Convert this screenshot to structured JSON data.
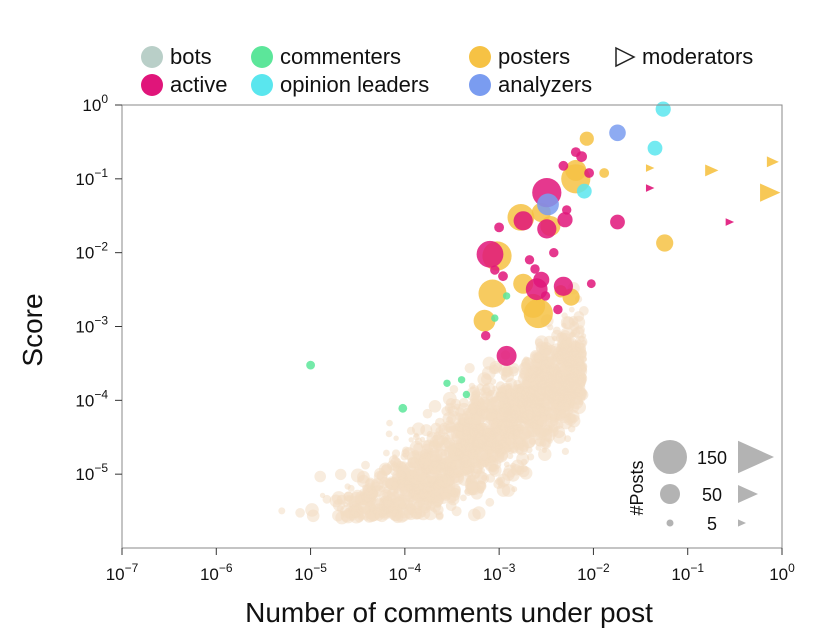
{
  "chart_data": {
    "type": "scatter",
    "title": "",
    "xlabel": "Number of comments under post",
    "ylabel": "Score",
    "x_scale": "log",
    "y_scale": "log",
    "xlim": [
      1e-07,
      1
    ],
    "ylim": [
      1e-06,
      1
    ],
    "x_ticks": [
      {
        "value": 1e-07,
        "base": "10",
        "exp": "−7"
      },
      {
        "value": 1e-06,
        "base": "10",
        "exp": "−6"
      },
      {
        "value": 1e-05,
        "base": "10",
        "exp": "−5"
      },
      {
        "value": 0.0001,
        "base": "10",
        "exp": "−4"
      },
      {
        "value": 0.001,
        "base": "10",
        "exp": "−3"
      },
      {
        "value": 0.01,
        "base": "10",
        "exp": "−2"
      },
      {
        "value": 0.1,
        "base": "10",
        "exp": "−1"
      },
      {
        "value": 1,
        "base": "10",
        "exp": "0"
      }
    ],
    "y_ticks": [
      {
        "value": 1,
        "base": "10",
        "exp": "0"
      },
      {
        "value": 0.1,
        "base": "10",
        "exp": "−1"
      },
      {
        "value": 0.01,
        "base": "10",
        "exp": "−2"
      },
      {
        "value": 0.001,
        "base": "10",
        "exp": "−3"
      },
      {
        "value": 0.0001,
        "base": "10",
        "exp": "−4"
      },
      {
        "value": 1e-05,
        "base": "10",
        "exp": "−5"
      }
    ],
    "grid": false,
    "legend_position": "top",
    "legend": [
      {
        "label": "bots",
        "marker": "circle",
        "color": "#b9cfc8"
      },
      {
        "label": "active",
        "marker": "circle",
        "color": "#e0157a"
      },
      {
        "label": "commenters",
        "marker": "circle",
        "color": "#5ce69a"
      },
      {
        "label": "opinion leaders",
        "marker": "circle",
        "color": "#5ae6ee"
      },
      {
        "label": "posters",
        "marker": "circle",
        "color": "#f6c244"
      },
      {
        "label": "analyzers",
        "marker": "circle",
        "color": "#7a9cf0"
      },
      {
        "label": "moderators",
        "marker": "triangle-outline",
        "color": "#222222"
      }
    ],
    "background_cloud": {
      "color": "#f2dcc2",
      "point_count": 2600,
      "x_range_log10": [
        -6.7,
        -2.1
      ],
      "trend_slope": 0.93,
      "trend_intercept": -1.55,
      "spread_log10": 0.34
    },
    "size_legend": {
      "title": "#Posts",
      "entries": [
        {
          "label": "150",
          "posts": 150
        },
        {
          "label": "50",
          "posts": 50
        },
        {
          "label": "5",
          "posts": 5
        }
      ]
    },
    "series": [
      {
        "name": "posters",
        "marker": "circle",
        "color": "#f6c244",
        "points": [
          {
            "x": 0.00095,
            "y": 0.009,
            "posts": 110
          },
          {
            "x": 0.00085,
            "y": 0.0028,
            "posts": 100
          },
          {
            "x": 0.0026,
            "y": 0.0015,
            "posts": 110
          },
          {
            "x": 0.0023,
            "y": 0.0019,
            "posts": 70
          },
          {
            "x": 0.0007,
            "y": 0.0012,
            "posts": 55
          },
          {
            "x": 0.0018,
            "y": 0.0038,
            "posts": 45
          },
          {
            "x": 0.0017,
            "y": 0.03,
            "posts": 90
          },
          {
            "x": 0.0035,
            "y": 0.023,
            "posts": 45
          },
          {
            "x": 0.0065,
            "y": 0.1,
            "posts": 110
          },
          {
            "x": 0.0065,
            "y": 0.13,
            "posts": 50
          },
          {
            "x": 0.0028,
            "y": 0.035,
            "posts": 40
          },
          {
            "x": 0.0058,
            "y": 0.0025,
            "posts": 30
          },
          {
            "x": 0.0085,
            "y": 0.35,
            "posts": 18
          },
          {
            "x": 0.057,
            "y": 0.0135,
            "posts": 30
          },
          {
            "x": 0.013,
            "y": 0.12,
            "posts": 6
          },
          {
            "x": 0.0045,
            "y": 0.003,
            "posts": 12
          }
        ]
      },
      {
        "name": "active",
        "marker": "circle",
        "color": "#e0157a",
        "points": [
          {
            "x": 0.0032,
            "y": 0.065,
            "posts": 110
          },
          {
            "x": 0.0008,
            "y": 0.0095,
            "posts": 90
          },
          {
            "x": 0.0025,
            "y": 0.0032,
            "posts": 55
          },
          {
            "x": 0.0048,
            "y": 0.0035,
            "posts": 40
          },
          {
            "x": 0.0012,
            "y": 0.0004,
            "posts": 45
          },
          {
            "x": 0.0032,
            "y": 0.021,
            "posts": 40
          },
          {
            "x": 0.0018,
            "y": 0.027,
            "posts": 40
          },
          {
            "x": 0.018,
            "y": 0.026,
            "posts": 20
          },
          {
            "x": 0.005,
            "y": 0.028,
            "posts": 22
          },
          {
            "x": 0.0028,
            "y": 0.0043,
            "posts": 25
          },
          {
            "x": 0.0075,
            "y": 0.2,
            "posts": 8
          },
          {
            "x": 0.0065,
            "y": 0.23,
            "posts": 6
          },
          {
            "x": 0.009,
            "y": 0.12,
            "posts": 6
          },
          {
            "x": 0.0048,
            "y": 0.15,
            "posts": 6
          },
          {
            "x": 0.0038,
            "y": 0.01,
            "posts": 5
          },
          {
            "x": 0.00072,
            "y": 0.00075,
            "posts": 5
          },
          {
            "x": 0.0011,
            "y": 0.0048,
            "posts": 6
          },
          {
            "x": 0.0024,
            "y": 0.006,
            "posts": 5
          },
          {
            "x": 0.0042,
            "y": 0.0017,
            "posts": 5
          },
          {
            "x": 0.0009,
            "y": 0.0058,
            "posts": 5
          },
          {
            "x": 0.001,
            "y": 0.022,
            "posts": 6
          },
          {
            "x": 0.0052,
            "y": 0.038,
            "posts": 5
          },
          {
            "x": 0.0021,
            "y": 0.008,
            "posts": 5
          },
          {
            "x": 0.0031,
            "y": 0.0026,
            "posts": 5
          },
          {
            "x": 0.0095,
            "y": 0.0038,
            "posts": 4
          }
        ]
      },
      {
        "name": "opinion leaders",
        "marker": "circle",
        "color": "#5ae6ee",
        "points": [
          {
            "x": 0.055,
            "y": 0.88,
            "posts": 22
          },
          {
            "x": 0.045,
            "y": 0.26,
            "posts": 20
          },
          {
            "x": 0.008,
            "y": 0.068,
            "posts": 20
          }
        ]
      },
      {
        "name": "analyzers",
        "marker": "circle",
        "color": "#7a9cf0",
        "points": [
          {
            "x": 0.0033,
            "y": 0.045,
            "posts": 55
          },
          {
            "x": 0.018,
            "y": 0.42,
            "posts": 28
          }
        ]
      },
      {
        "name": "commenters",
        "marker": "circle",
        "color": "#5ce69a",
        "points": [
          {
            "x": 1e-05,
            "y": 0.0003,
            "posts": 4
          },
          {
            "x": 9.5e-05,
            "y": 7.8e-05,
            "posts": 4
          },
          {
            "x": 0.00028,
            "y": 0.00017,
            "posts": 2
          },
          {
            "x": 0.0004,
            "y": 0.00019,
            "posts": 2
          },
          {
            "x": 0.00045,
            "y": 0.00012,
            "posts": 2
          },
          {
            "x": 0.0009,
            "y": 0.0013,
            "posts": 2
          },
          {
            "x": 0.0012,
            "y": 0.0026,
            "posts": 2
          }
        ]
      },
      {
        "name": "moderators",
        "marker": "triangle",
        "color": "#f6c244",
        "points": [
          {
            "x": 0.75,
            "y": 0.065,
            "posts": 60
          },
          {
            "x": 0.18,
            "y": 0.13,
            "posts": 20
          },
          {
            "x": 0.8,
            "y": 0.17,
            "posts": 15
          },
          {
            "x": 0.04,
            "y": 0.14,
            "posts": 5
          }
        ]
      },
      {
        "name": "moderators",
        "marker": "triangle",
        "color": "#e0157a",
        "points": [
          {
            "x": 0.28,
            "y": 0.026,
            "posts": 5
          },
          {
            "x": 0.04,
            "y": 0.075,
            "posts": 5
          }
        ]
      }
    ]
  }
}
